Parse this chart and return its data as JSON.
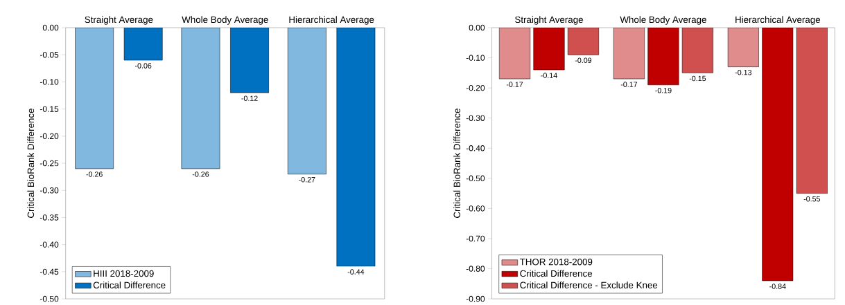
{
  "chart_data": [
    {
      "type": "bar",
      "categories": [
        "Straight Average",
        "Whole Body Average",
        "Hierarchical Average"
      ],
      "ylabel": "Critical BioRank Difference",
      "ylim": [
        -0.5,
        0
      ],
      "yticks": [
        {
          "value": -0.5,
          "label": "-0.50"
        },
        {
          "value": -0.45,
          "label": "-0.45"
        },
        {
          "value": -0.4,
          "label": "-0.40"
        },
        {
          "value": -0.35,
          "label": "-0.35"
        },
        {
          "value": -0.3,
          "label": "-0.30"
        },
        {
          "value": -0.25,
          "label": "-0.25"
        },
        {
          "value": -0.2,
          "label": "-0.20"
        },
        {
          "value": -0.15,
          "label": "-0.15"
        },
        {
          "value": -0.1,
          "label": "-0.10"
        },
        {
          "value": -0.05,
          "label": "-0.05"
        },
        {
          "value": 0,
          "label": "0.00"
        }
      ],
      "legend": "bottom left",
      "series": [
        {
          "name": "HIII 2018-2009",
          "color": "#80b8e0",
          "values": [
            -0.26,
            -0.26,
            -0.27
          ],
          "value_labels": [
            "-0.26",
            "-0.26",
            "-0.27"
          ]
        },
        {
          "name": "Critical Difference",
          "color": "#0070c0",
          "values": [
            -0.06,
            -0.12,
            -0.44
          ],
          "value_labels": [
            "-0.06",
            "-0.12",
            "-0.44"
          ]
        }
      ]
    },
    {
      "type": "bar",
      "categories": [
        "Straight Average",
        "Whole Body Average",
        "Hierarchical Average"
      ],
      "ylabel": "Critical BioRank Difference",
      "ylim": [
        -0.9,
        0
      ],
      "yticks": [
        {
          "value": -0.9,
          "label": "-0.90"
        },
        {
          "value": -0.8,
          "label": "-0.80"
        },
        {
          "value": -0.7,
          "label": "-0.70"
        },
        {
          "value": -0.6,
          "label": "-0.60"
        },
        {
          "value": -0.5,
          "label": "-0.50"
        },
        {
          "value": -0.4,
          "label": "-0.40"
        },
        {
          "value": -0.3,
          "label": "-0.30"
        },
        {
          "value": -0.2,
          "label": "-0.20"
        },
        {
          "value": -0.1,
          "label": "-0.10"
        },
        {
          "value": 0,
          "label": "0.00"
        }
      ],
      "legend": "bottom left",
      "series": [
        {
          "name": "THOR 2018-2009",
          "color": "#e08c8c",
          "values": [
            -0.17,
            -0.17,
            -0.13
          ],
          "value_labels": [
            "-0.17",
            "-0.17",
            "-0.13"
          ]
        },
        {
          "name": "Critical Difference",
          "color": "#c00000",
          "values": [
            -0.14,
            -0.19,
            -0.84
          ],
          "value_labels": [
            "-0.14",
            "-0.19",
            "-0.84"
          ]
        },
        {
          "name": "Critical Difference - Exclude Knee",
          "color": "#d05050",
          "values": [
            -0.09,
            -0.15,
            -0.55
          ],
          "value_labels": [
            "-0.09",
            "-0.15",
            "-0.55"
          ]
        }
      ]
    }
  ]
}
